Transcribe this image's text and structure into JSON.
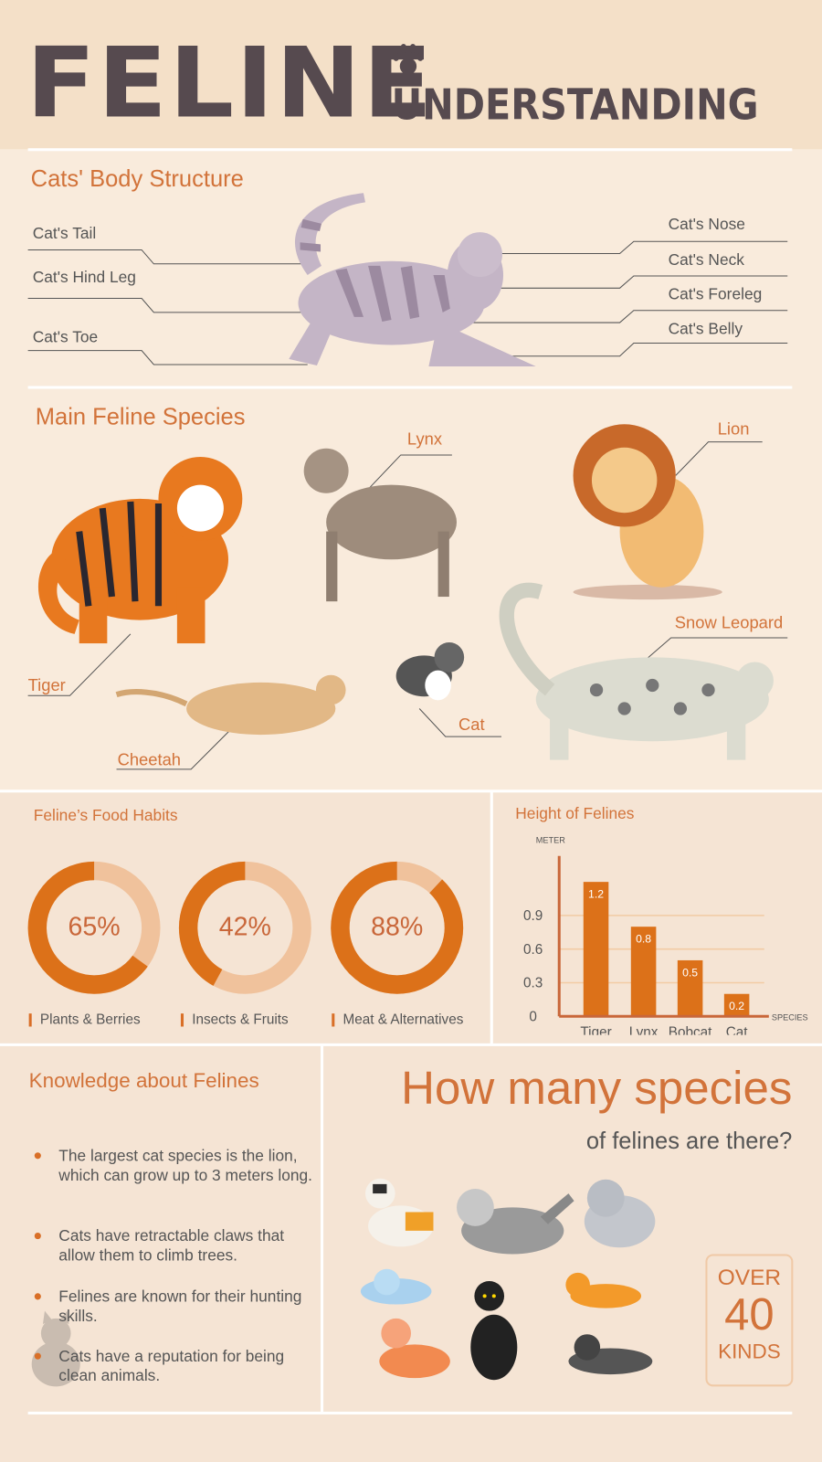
{
  "header": {
    "title": "FELINE",
    "subtitle": "UNDERSTANDING",
    "icon": "paw-icon"
  },
  "body_structure": {
    "title": "Cats' Body Structure",
    "left_labels": [
      "Cat's Tail",
      "Cat's Hind Leg",
      "Cat's Toe"
    ],
    "right_labels": [
      "Cat's Nose",
      "Cat's Neck",
      "Cat's Foreleg",
      "Cat's Belly"
    ]
  },
  "species": {
    "title": "Main Feline Species",
    "labels": {
      "lynx": "Lynx",
      "lion": "Lion",
      "snow_leopard": "Snow Leopard",
      "tiger": "Tiger",
      "cheetah": "Cheetah",
      "cat": "Cat"
    }
  },
  "food": {
    "title": "Feline’s Food Habits",
    "items": [
      {
        "value": "65%",
        "percent": 65,
        "label": "Plants & Berries"
      },
      {
        "value": "42%",
        "percent": 42,
        "label": "Insects & Fruits"
      },
      {
        "value": "88%",
        "percent": 88,
        "label": "Meat & Alternatives"
      }
    ],
    "colors": {
      "fill": "#dc7119",
      "track": "#f0c29c"
    }
  },
  "chart_data": {
    "type": "bar",
    "title": "Height of Felines",
    "ylabel": "METER",
    "xlabel": "SPECIES",
    "categories": [
      "Tiger",
      "Lynx",
      "Bobcat",
      "Cat"
    ],
    "values": [
      1.2,
      0.8,
      0.5,
      0.2
    ],
    "data_labels": [
      "1.2",
      "0.8",
      "0.5",
      "0.2"
    ],
    "yticks": [
      "0",
      "0.3",
      "0.6",
      "0.9"
    ],
    "ylim": [
      0,
      1.2
    ],
    "grid": true,
    "color": "#dc7119"
  },
  "knowledge": {
    "title": "Knowledge about Felines",
    "facts": [
      "The largest cat species is the lion, which can grow up to 3 meters long.",
      "Cats have retractable claws that allow them to climb trees.",
      "Felines are known for their hunting skills.",
      "Cats have a reputation for being clean animals."
    ]
  },
  "how_many": {
    "title": "How many species",
    "subtitle": "of felines are there?",
    "over": "OVER",
    "count": "40",
    "kinds": "KINDS"
  }
}
